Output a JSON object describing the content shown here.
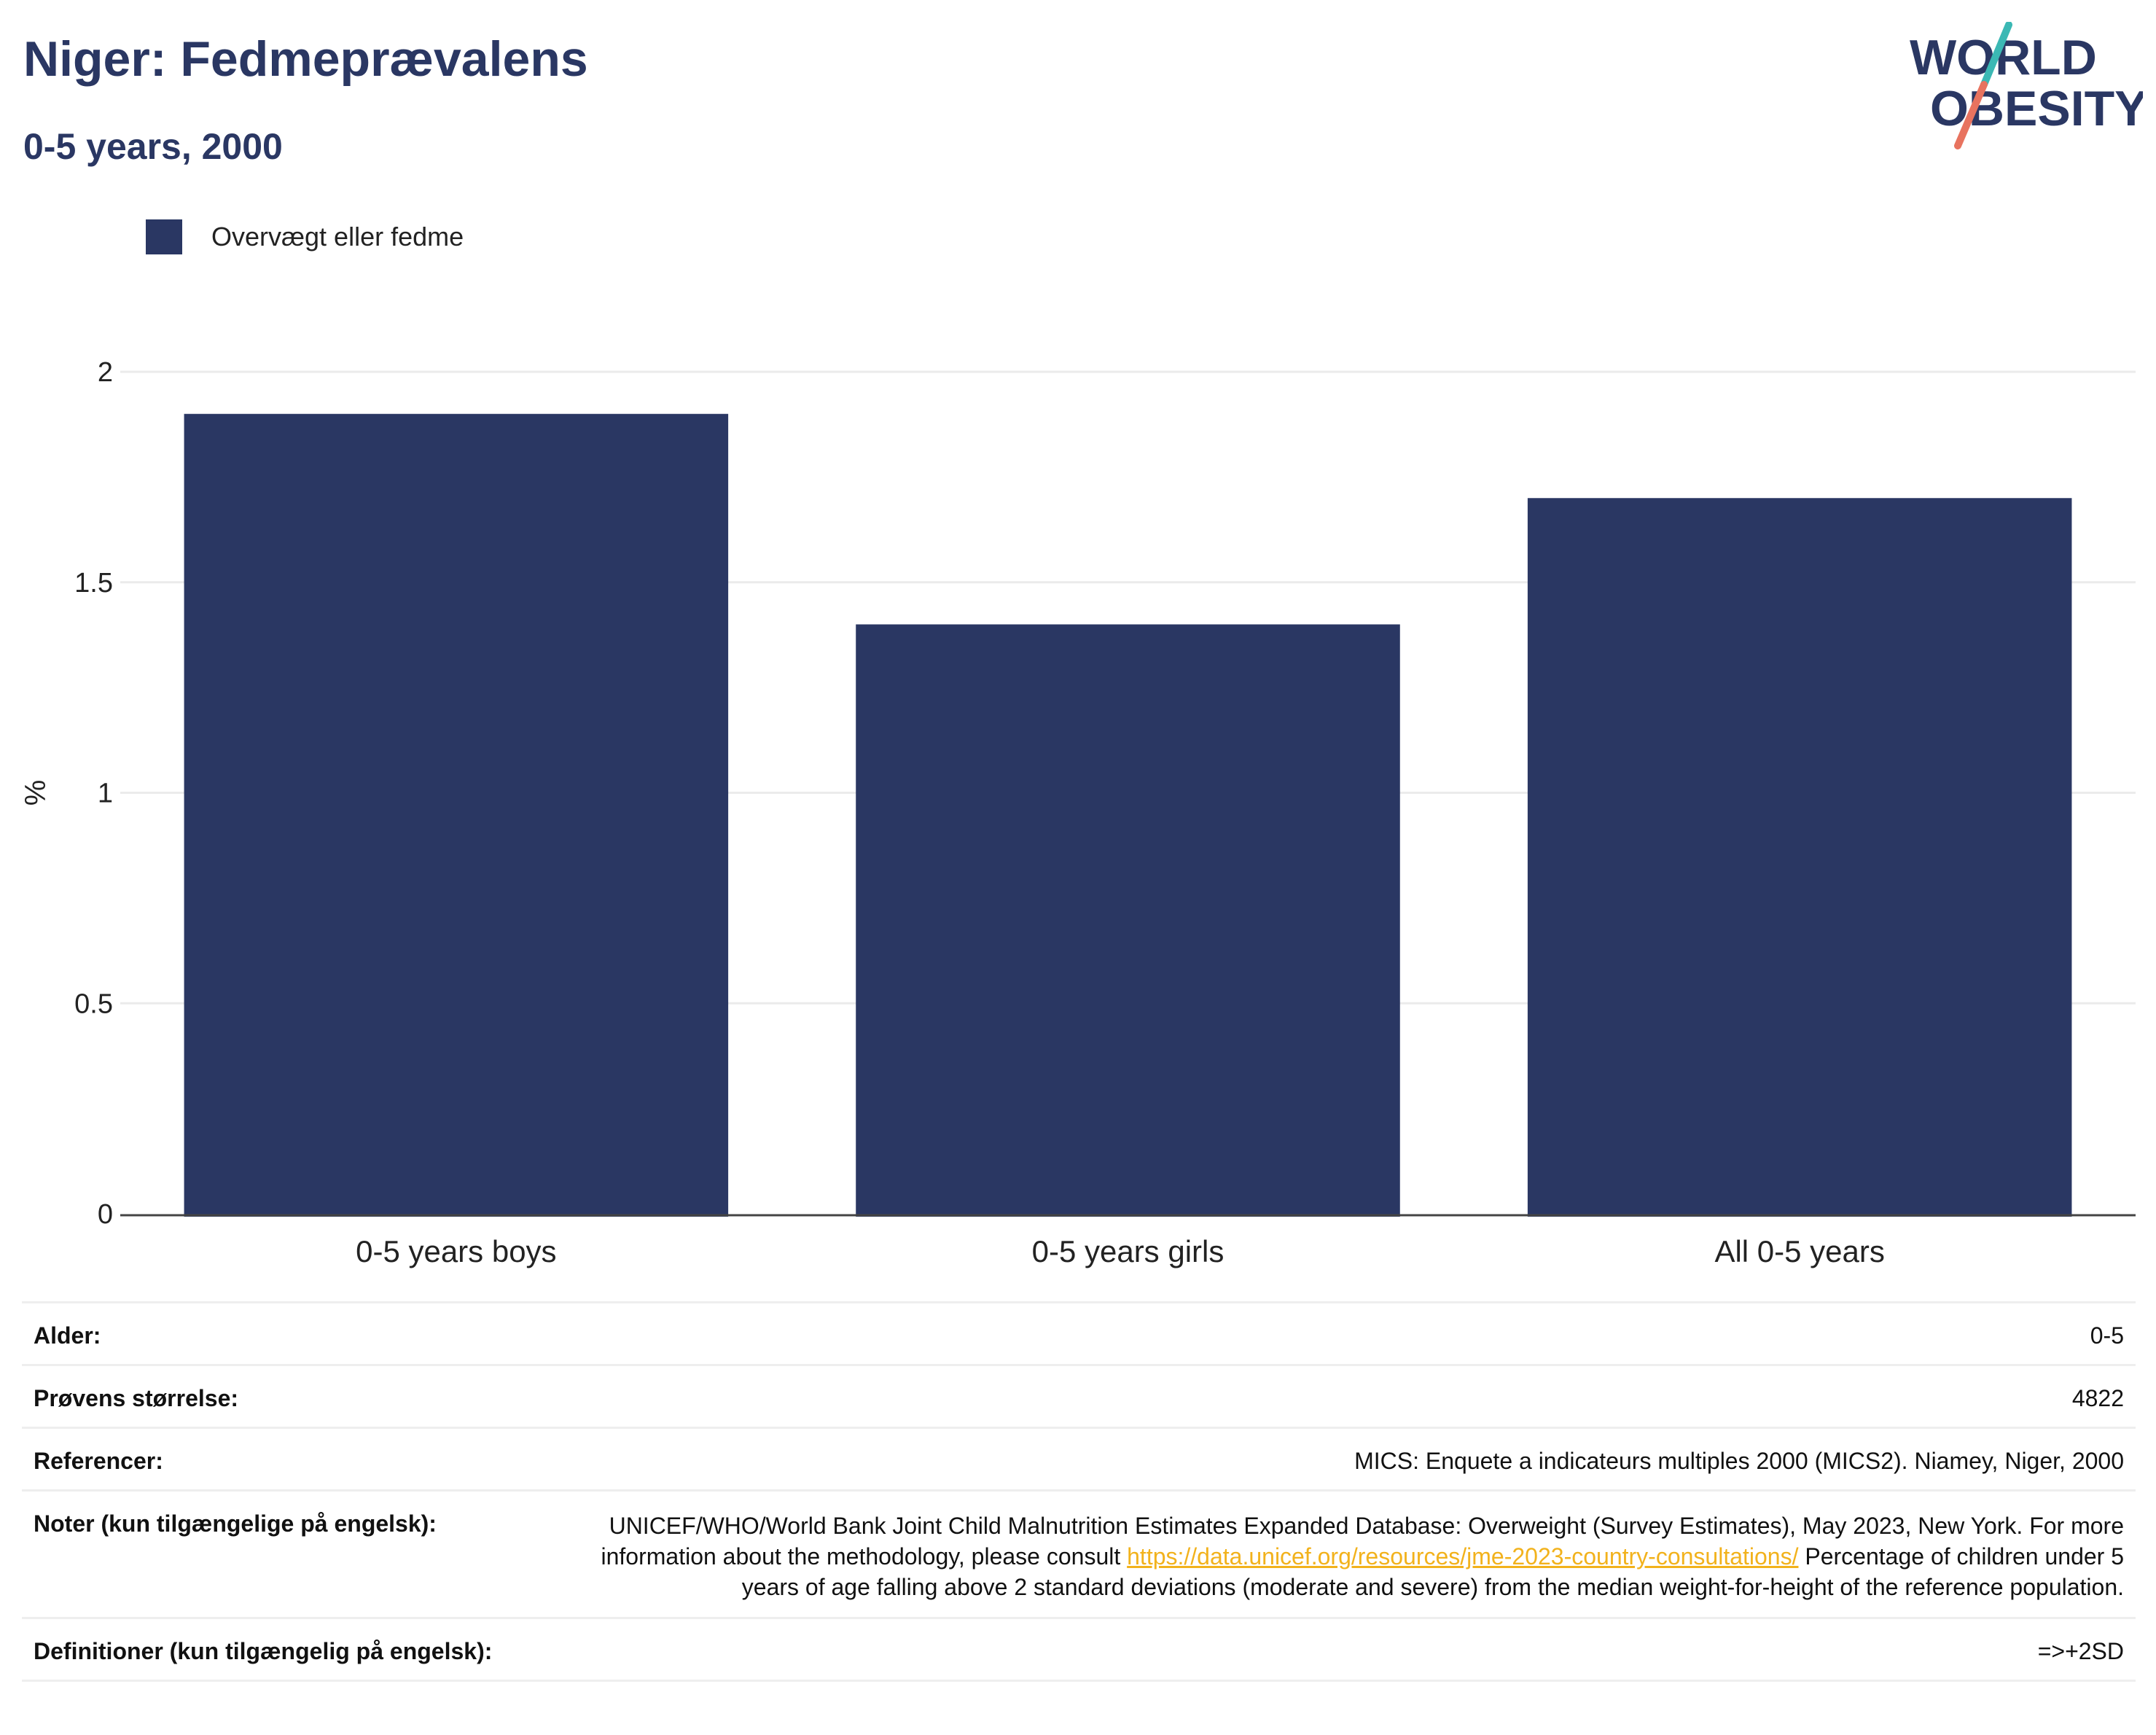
{
  "header": {
    "title": "Niger: Fedmeprævalens",
    "subtitle": "0-5 years, 2000"
  },
  "logo": {
    "line1": "WORLD",
    "line2": "OBESITY"
  },
  "legend": {
    "label": "Overvægt eller fedme",
    "color": "#2a3763"
  },
  "chart_data": {
    "type": "bar",
    "categories": [
      "0-5 years boys",
      "0-5 years girls",
      "All 0-5 years"
    ],
    "series": [
      {
        "name": "Overvægt eller fedme",
        "values": [
          1.9,
          1.4,
          1.7
        ]
      }
    ],
    "ylabel": "%",
    "ylim": [
      0,
      2
    ],
    "yticks": [
      0,
      0.5,
      1,
      1.5,
      2
    ],
    "ytick_labels": [
      "0",
      "0.5",
      "1",
      "1.5",
      "2"
    ],
    "grid": true,
    "legend_position": "top-left"
  },
  "info": {
    "age": {
      "label": "Alder:",
      "value": "0-5"
    },
    "sample": {
      "label": "Prøvens størrelse:",
      "value": "4822"
    },
    "refs": {
      "label": "Referencer:",
      "value": "MICS: Enquete a indicateurs multiples 2000 (MICS2). Niamey, Niger, 2000"
    },
    "notes": {
      "label": "Noter (kun tilgængelige på engelsk):",
      "text1": "UNICEF/WHO/World Bank Joint Child Malnutrition Estimates Expanded Database: Overweight (Survey Estimates), May 2023, New York. For more information about the methodology, please consult ",
      "link": "https://data.unicef.org/resources/jme-2023-country-consultations/",
      "text2": "Percentage of children under 5 years of age falling above 2 standard deviations (moderate and severe) from the median weight-for-height of the reference population."
    },
    "defs": {
      "label": "Definitioner (kun tilgængelig på engelsk):",
      "value": "=>+2SD"
    }
  },
  "colors": {
    "bar": "#2a3763",
    "title": "#2a3763",
    "logo_teal": "#3bb8b4",
    "logo_coral": "#e8735f",
    "link": "#f2b21c"
  }
}
